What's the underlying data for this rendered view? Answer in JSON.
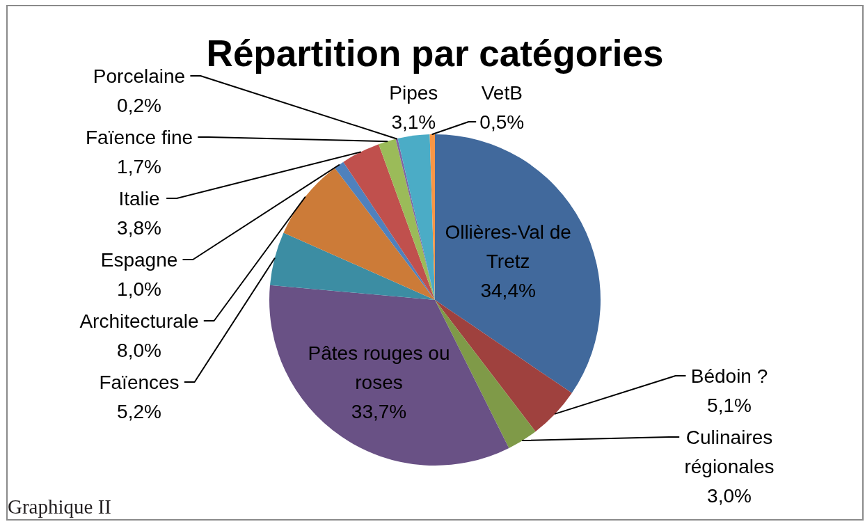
{
  "chart_data": {
    "type": "pie",
    "title": "Répartition par catégories",
    "categories": [
      "Ollières-Val de Tretz",
      "Bédoin ?",
      "Culinaires régionales",
      "Pâtes rouges ou roses",
      "Faïences",
      "Architecturale",
      "Espagne",
      "Italie",
      "Faïence fine",
      "Porcelaine",
      "Pipes",
      "VetB"
    ],
    "values": [
      34.4,
      5.1,
      3.0,
      33.7,
      5.2,
      8.0,
      1.0,
      3.8,
      1.7,
      0.2,
      3.1,
      0.5
    ],
    "value_labels": [
      "34,4%",
      "5,1%",
      "3,0%",
      "33,7%",
      "5,2%",
      "8,0%",
      "1,0%",
      "3,8%",
      "1,7%",
      "0,2%",
      "3,1%",
      "0,5%"
    ],
    "colors": [
      "#41699c",
      "#9f413e",
      "#7f9a48",
      "#695185",
      "#3c8da3",
      "#cc7b38",
      "#4f81bd",
      "#c0504d",
      "#9bbb59",
      "#8064a2",
      "#4bacc6",
      "#f79646"
    ],
    "annotations": [
      "Graphique II"
    ]
  }
}
